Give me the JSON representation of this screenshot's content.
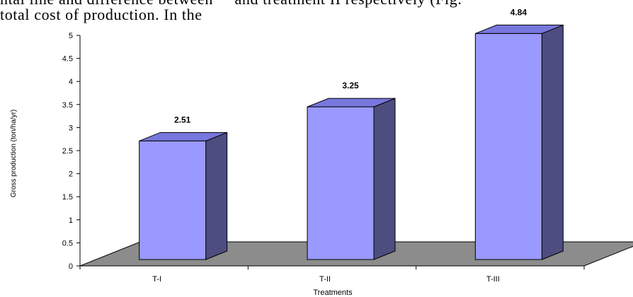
{
  "document": {
    "line1": "ntal line and difference between     and treatment II respectively (Fig.",
    "line2": "total cost of production. In the"
  },
  "chart_data": {
    "type": "bar",
    "categories": [
      "T-I",
      "T-II",
      "T-III"
    ],
    "values": [
      2.51,
      3.25,
      4.84
    ],
    "data_labels": [
      "2.51",
      "3.25",
      "4.84"
    ],
    "title": "",
    "xlabel": "Treatments",
    "ylabel": "Gross production (ton/ha/yr)",
    "ylim": [
      0,
      5
    ],
    "yticks": [
      "0",
      "0.5",
      "1",
      "1.5",
      "2",
      "2.5",
      "3",
      "3.5",
      "4",
      "4.5",
      "5"
    ],
    "three_d": true,
    "grid": false,
    "legend": "none",
    "colors": {
      "bar_front": "#9999ff",
      "bar_side": "#4d4d80",
      "bar_top": "#7777dd",
      "floor": "#8c8c8c",
      "axis": "#000000"
    }
  }
}
